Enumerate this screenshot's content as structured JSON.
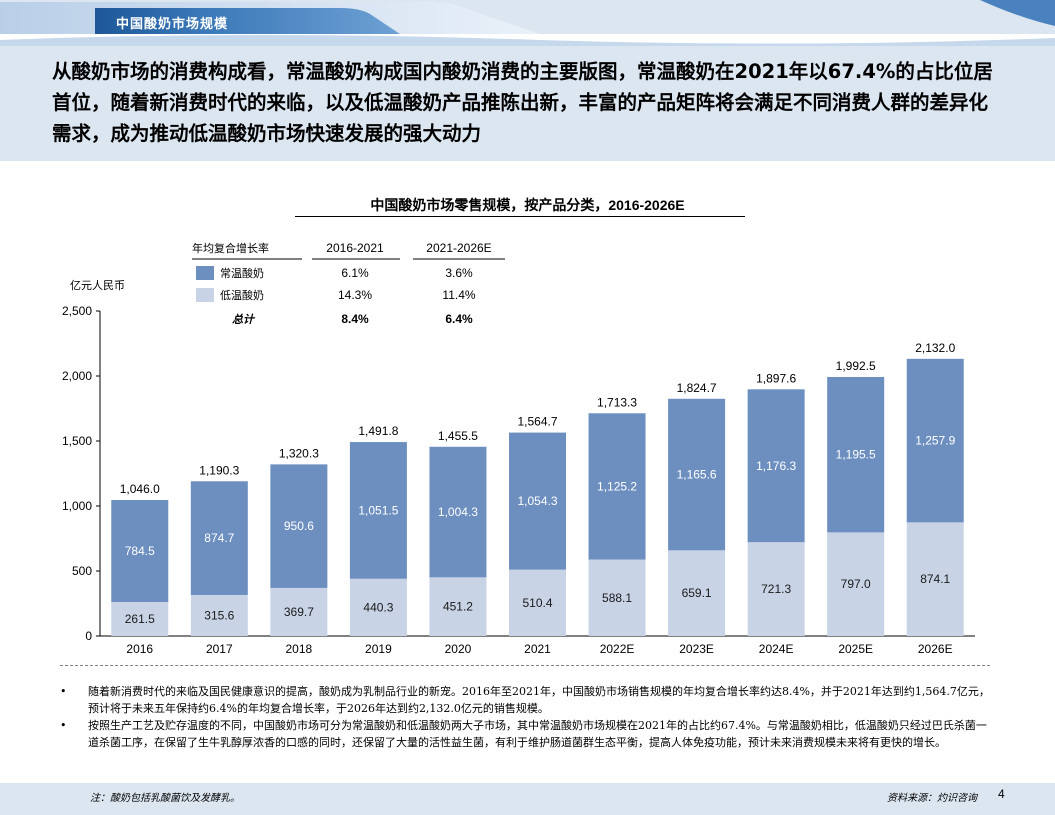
{
  "header": {
    "tab_title": "中国酸奶市场规模",
    "headline": "从酸奶市场的消费构成看，常温酸奶构成国内酸奶消费的主要版图，常温酸奶在2021年以67.4%的占比位居首位，随着新消费时代的来临，以及低温酸奶产品推陈出新，丰富的产品矩阵将会满足不同消费人群的差异化需求，成为推动低温酸奶市场快速发展的强大动力"
  },
  "colors": {
    "ambient": "#6d8fc0",
    "chilled": "#c8d3e6",
    "band": "#dce6f1",
    "tab_dark": "#2e67a6"
  },
  "chart_data": {
    "type": "bar",
    "stacked": true,
    "title": "中国酸奶市场零售规模，按产品分类，2016-2026E",
    "ylabel": "亿元人民币",
    "ylim": [
      0,
      2500
    ],
    "yticks": [
      "0",
      "500",
      "1,000",
      "1,500",
      "2,000",
      "2,500"
    ],
    "ytick_values": [
      0,
      500,
      1000,
      1500,
      2000,
      2500
    ],
    "categories": [
      "2016",
      "2017",
      "2018",
      "2019",
      "2020",
      "2021",
      "2022E",
      "2023E",
      "2024E",
      "2025E",
      "2026E"
    ],
    "series": [
      {
        "name": "低温酸奶",
        "values": [
          261.5,
          315.6,
          369.7,
          440.3,
          451.2,
          510.4,
          588.1,
          659.1,
          721.3,
          797.0,
          874.1
        ],
        "labels": [
          "261.5",
          "315.6",
          "369.7",
          "440.3",
          "451.2",
          "510.4",
          "588.1",
          "659.1",
          "721.3",
          "797.0",
          "874.1"
        ]
      },
      {
        "name": "常温酸奶",
        "values": [
          784.5,
          874.7,
          950.6,
          1051.5,
          1004.3,
          1054.3,
          1125.2,
          1165.6,
          1176.3,
          1195.5,
          1257.9
        ],
        "labels": [
          "784.5",
          "874.7",
          "950.6",
          "1,051.5",
          "1,004.3",
          "1,054.3",
          "1,125.2",
          "1,165.6",
          "1,176.3",
          "1,195.5",
          "1,257.9"
        ]
      }
    ],
    "totals": [
      1046.0,
      1190.3,
      1320.3,
      1491.8,
      1455.5,
      1564.7,
      1713.3,
      1824.7,
      1897.6,
      1992.5,
      2132.0
    ],
    "total_labels": [
      "1,046.0",
      "1,190.3",
      "1,320.3",
      "1,491.8",
      "1,455.5",
      "1,564.7",
      "1,713.3",
      "1,824.7",
      "1,897.6",
      "1,992.5",
      "2,132.0"
    ],
    "legend": {
      "position": "top-left",
      "header": [
        "年均复合增长率",
        "2016-2021",
        "2021-2026E"
      ],
      "rows": [
        {
          "label": "常温酸奶",
          "swatch": "ambient",
          "cagr_a": "6.1%",
          "cagr_b": "3.6%"
        },
        {
          "label": "低温酸奶",
          "swatch": "chilled",
          "cagr_a": "14.3%",
          "cagr_b": "11.4%"
        },
        {
          "label": "总计",
          "swatch": "",
          "cagr_a": "8.4%",
          "cagr_b": "6.4%"
        }
      ]
    }
  },
  "notes": {
    "bullet": "•",
    "items": [
      "随着新消费时代的来临及国民健康意识的提高，酸奶成为乳制品行业的新宠。2016年至2021年，中国酸奶市场销售规模的年均复合增长率约达8.4%，并于2021年达到约1,564.7亿元，预计将于未来五年保持约6.4%的年均复合增长率，于2026年达到约2,132.0亿元的销售规模。",
      "按照生产工艺及贮存温度的不同，中国酸奶市场可分为常温酸奶和低温酸奶两大子市场，其中常温酸奶市场规模在2021年的占比约67.4%。与常温酸奶相比，低温酸奶只经过巴氏杀菌一道杀菌工序，在保留了生牛乳醇厚浓香的口感的同时，还保留了大量的活性益生菌，有利于维护肠道菌群生态平衡，提高人体免疫功能，预计未来消费规模未来将有更快的增长。"
    ]
  },
  "footer": {
    "footnote": "注：酸奶包括乳酸菌饮及发酵乳。",
    "source": "资料来源：灼识咨询",
    "page": "4"
  }
}
